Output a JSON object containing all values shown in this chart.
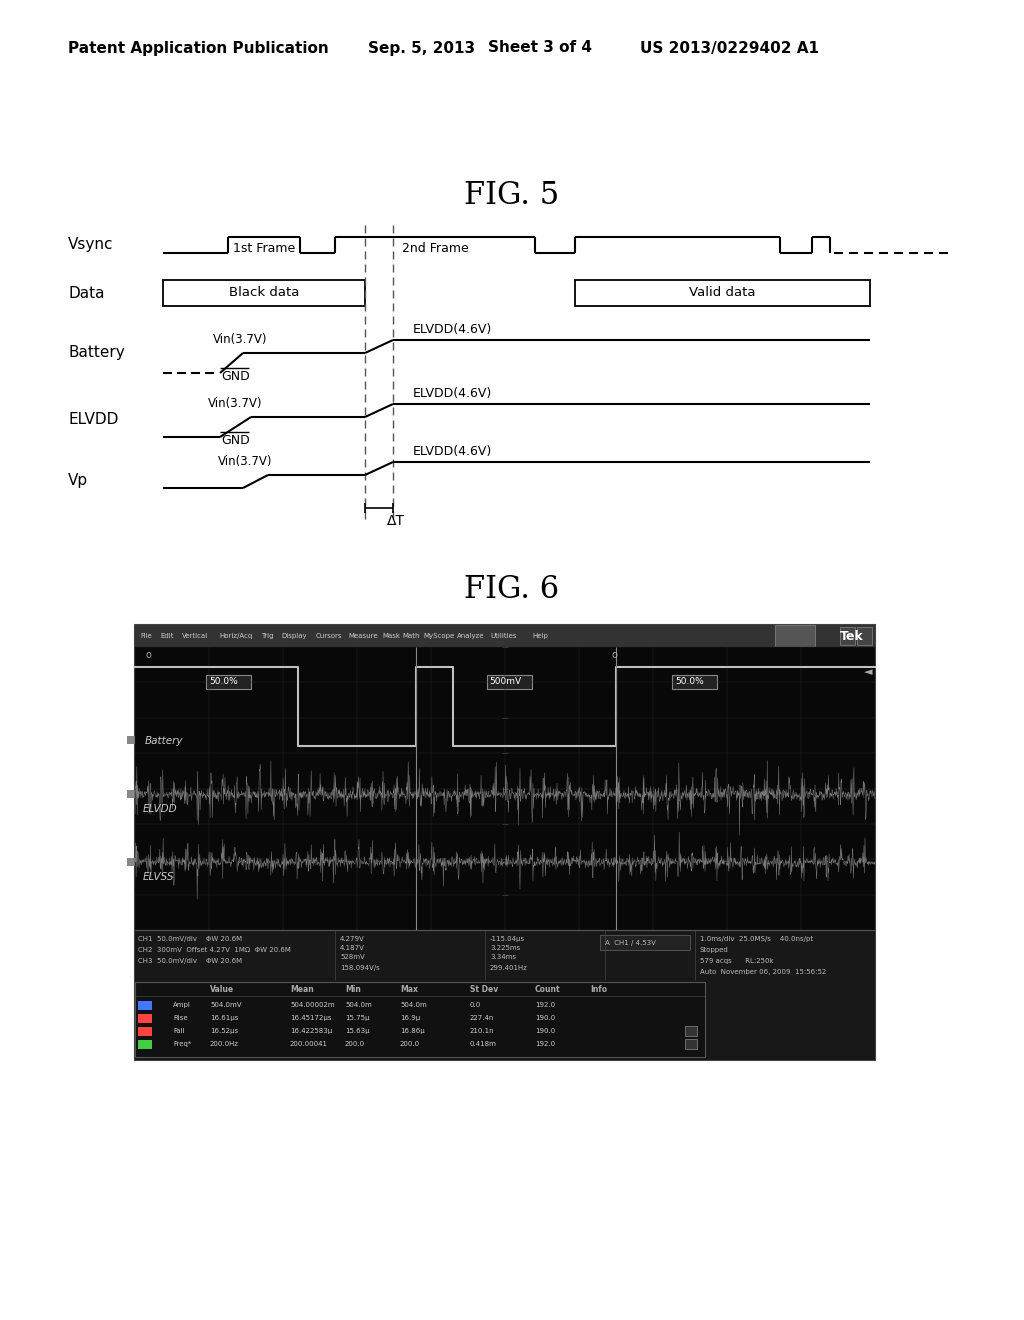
{
  "bg_color": "#ffffff",
  "text_color": "#000000",
  "header_left": "Patent Application Publication",
  "header_mid1": "Sep. 5, 2013",
  "header_mid2": "Sheet 3 of 4",
  "header_right": "US 2013/0229402 A1",
  "fig5_title": "FIG. 5",
  "fig6_title": "FIG. 6",
  "vsync_label": "Vsync",
  "data_label": "Data",
  "battery_label": "Battery",
  "elvdd_label": "ELVDD",
  "vp_label": "Vp",
  "gnd_text": "GND",
  "vin_text": "Vin(3.7V)",
  "elvdd_text": "ELVDD(4.6V)",
  "frame1_text": "1st Frame",
  "frame2_text": "2nd Frame",
  "black_data_text": "Black data",
  "valid_data_text": "Valid data",
  "delta_t_text": "ΔT",
  "osc_bg": "#101010",
  "osc_scope_bg": "#080808",
  "osc_menu_bg": "#2a2a2a",
  "osc_text_color": "#cccccc",
  "osc_trace_color": "#aaaaaa",
  "osc_noise_color": "#999999"
}
